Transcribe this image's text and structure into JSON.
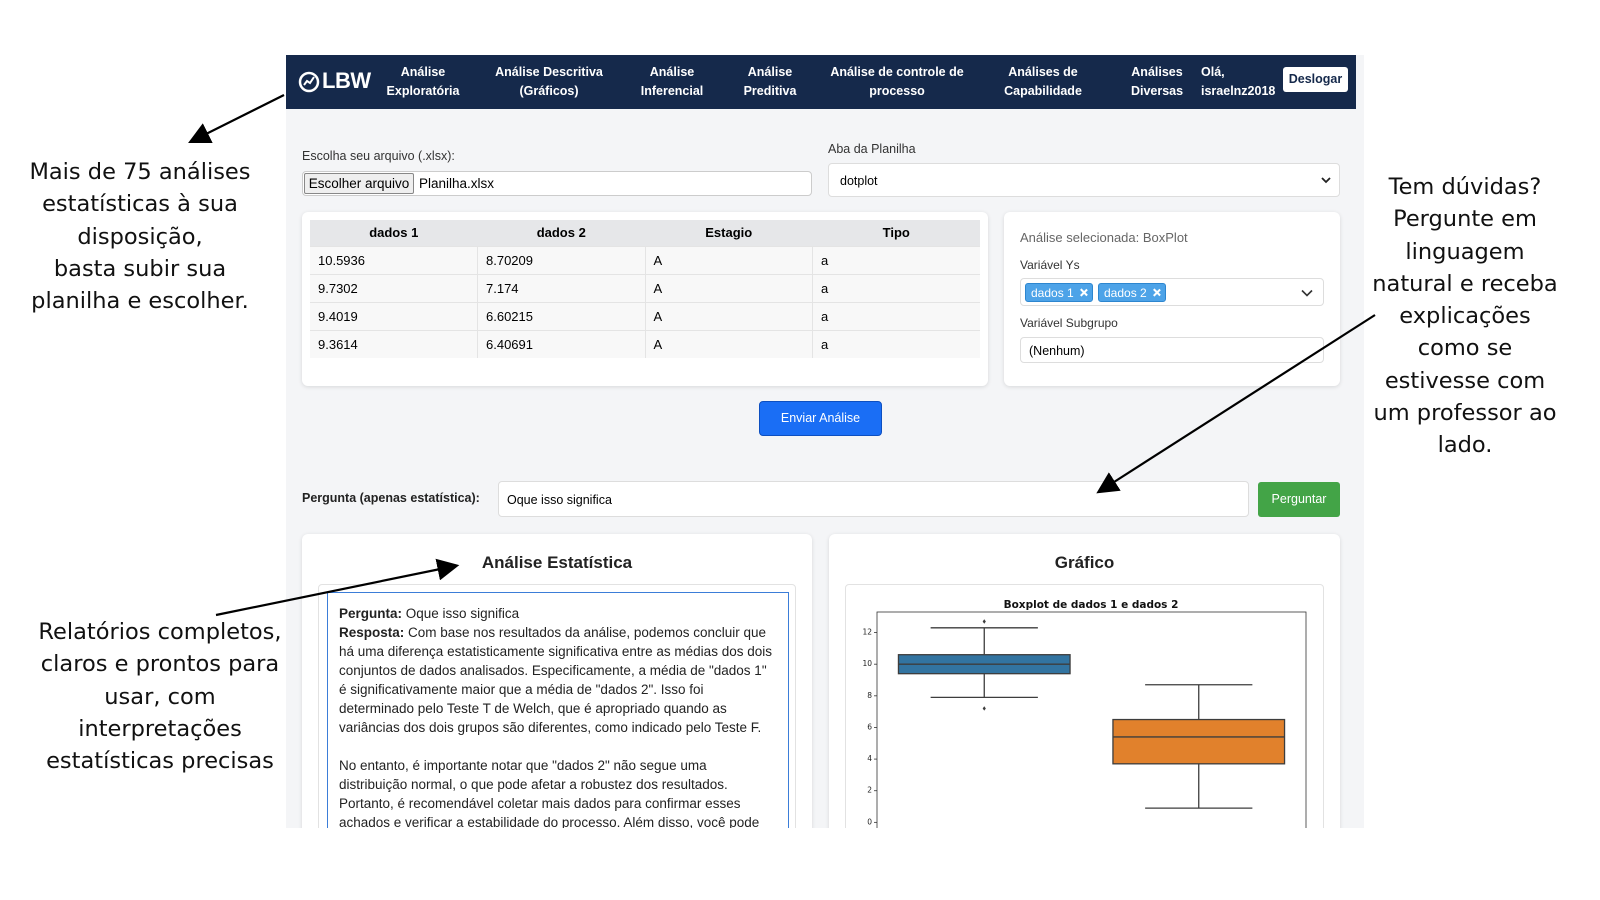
{
  "annotations": {
    "top_left": [
      "Mais de 75 análises",
      "estatísticas à sua",
      "disposição,",
      "basta subir sua",
      "planilha e escolher."
    ],
    "bottom_left": [
      "Relatórios completos,",
      "claros e prontos para",
      "usar, com",
      "interpretações",
      "estatísticas precisas"
    ],
    "right": [
      "Tem dúvidas?",
      "Pergunte em",
      "linguagem",
      "natural e receba",
      "explicações",
      "como se",
      "estivesse com",
      "um professor ao",
      "lado."
    ]
  },
  "nav": {
    "logo": "LBW",
    "items": [
      [
        "Análise",
        "Exploratória"
      ],
      [
        "Análise Descritiva",
        "(Gráficos)"
      ],
      [
        "Análise",
        "Inferencial"
      ],
      [
        "Análise",
        "Preditiva"
      ],
      [
        "Análise de controle de",
        "processo"
      ],
      [
        "Análises de",
        "Capabilidade"
      ],
      [
        "Análises",
        "Diversas"
      ]
    ],
    "greeting": [
      "Olá,",
      "israelnz2018"
    ],
    "logout": "Deslogar"
  },
  "file": {
    "label": "Escolha seu arquivo (.xlsx):",
    "button": "Escolher arquivo",
    "filename": "Planilha.xlsx"
  },
  "sheet": {
    "label": "Aba da Planilha",
    "value": "dotplot"
  },
  "table": {
    "headers": [
      "dados 1",
      "dados 2",
      "Estagio",
      "Tipo"
    ],
    "rows": [
      [
        "10.5936",
        "8.70209",
        "A",
        "a"
      ],
      [
        "9.7302",
        "7.174",
        "A",
        "a"
      ],
      [
        "9.4019",
        "6.60215",
        "A",
        "a"
      ],
      [
        "9.3614",
        "6.40691",
        "A",
        "a"
      ]
    ]
  },
  "analysis": {
    "selected": "Análise selecionada: BoxPlot",
    "ys_label": "Variável Ys",
    "ys_tags": [
      "dados 1",
      "dados 2"
    ],
    "subgroup_label": "Variável Subgrupo",
    "subgroup_value": "(Nenhum)"
  },
  "submit": "Enviar Análise",
  "question": {
    "label": "Pergunta (apenas estatística):",
    "value": "Oque isso significa",
    "button": "Perguntar"
  },
  "report": {
    "title": "Análise Estatística",
    "question_label": "Pergunta:",
    "question": "Oque isso significa",
    "answer_label": "Resposta:",
    "answer": "Com base nos resultados da análise, podemos concluir que há uma diferença estatisticamente significativa entre as médias dos dois conjuntos de dados analisados. Especificamente, a média de \"dados 1\" é significativamente maior que a média de \"dados 2\". Isso foi determinado pelo Teste T de Welch, que é apropriado quando as variâncias dos dois grupos são diferentes, como indicado pelo Teste F.",
    "paragraph2": "No entanto, é importante notar que \"dados 2\" não segue uma distribuição normal, o que pode afetar a robustez dos resultados. Portanto, é recomendável coletar mais dados para confirmar esses achados e verificar a estabilidade do processo. Além disso, você pode"
  },
  "chart_card": {
    "title": "Gráfico"
  },
  "chart_data": {
    "type": "boxplot",
    "title": "Boxplot de dados 1 e dados 2",
    "ylim": [
      -0.8,
      13.3
    ],
    "yticks": [
      0,
      2,
      4,
      6,
      8,
      10,
      12
    ],
    "boxes": [
      {
        "color": "#3274a1",
        "whislo": 7.9,
        "q1": 9.4,
        "med": 10.0,
        "q3": 10.6,
        "whishi": 12.3,
        "fliers": [
          12.7,
          7.2
        ]
      },
      {
        "color": "#e1812c",
        "whislo": 0.9,
        "q1": 3.7,
        "med": 5.4,
        "q3": 6.5,
        "whishi": 8.7,
        "fliers": []
      }
    ]
  }
}
